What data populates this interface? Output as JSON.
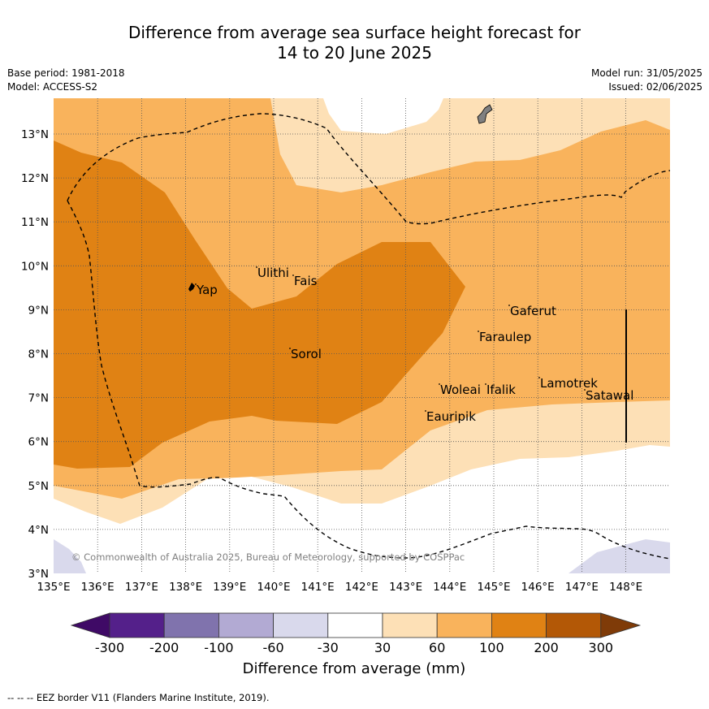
{
  "title_line1": "Difference from average sea surface height forecast for",
  "title_line2": "14 to 20 June 2025",
  "meta": {
    "base_period": "Base period: 1981-2018",
    "model": "Model: ACCESS-S2",
    "model_run": "Model run: 31/05/2025",
    "issued": "Issued: 02/06/2025"
  },
  "map": {
    "lon_labels": [
      "135°E",
      "136°E",
      "137°E",
      "138°E",
      "139°E",
      "140°E",
      "141°E",
      "142°E",
      "143°E",
      "144°E",
      "145°E",
      "146°E",
      "147°E",
      "148°E"
    ],
    "lat_labels": [
      "13°N",
      "12°N",
      "11°N",
      "10°N",
      "9°N",
      "8°N",
      "7°N",
      "6°N",
      "5°N",
      "4°N",
      "3°N"
    ],
    "places": [
      "Yap",
      "Ulithi",
      "Fais",
      "Gaferut",
      "Faraulep",
      "Sorol",
      "Woleai",
      "Ifalik",
      "Lamotrek",
      "Satawal",
      "Eauripik"
    ],
    "copyright": "© Commonwealth of Australia 2025, Bureau of Meteorology, supported by COSPPac"
  },
  "colorbar": {
    "labels": [
      "-300",
      "-200",
      "-100",
      "-60",
      "-30",
      "30",
      "60",
      "100",
      "200",
      "300"
    ],
    "title": "Difference from average (mm)",
    "colors": [
      "#3f0a66",
      "#54208a",
      "#8073ad",
      "#b2aad3",
      "#d9d9ec",
      "#ffffff",
      "#fde0b6",
      "#f9b35c",
      "#e08214",
      "#b35806",
      "#7f3b08"
    ]
  },
  "footer": "--  --  -- EEZ border V11 (Flanders Marine Institute, 2019)."
}
